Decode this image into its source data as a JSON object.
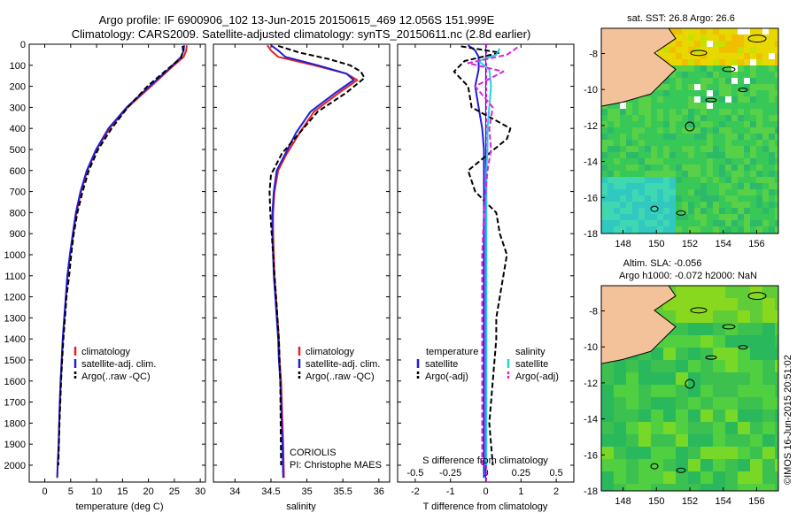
{
  "header": {
    "title_line1": "Argo profile: IF 6900906_102 13-Jun-2015 20150615_469 12.056S 151.999E",
    "title_line2": "Climatology: CARS2009. Satellite-adjusted climatology: synTS_20150611.nc (2.8d earlier)"
  },
  "colors": {
    "climatology": "#e8201e",
    "satellite": "#1f1fd6",
    "argo": "#000000",
    "sal_satellite": "#22d3dc",
    "sal_argo": "#dd22dd",
    "land": "#f3c29a"
  },
  "chart_data": [
    {
      "type": "line",
      "name": "temperature",
      "xlabel": "temperature (deg C)",
      "ylabel": "",
      "xlim": [
        -3,
        31
      ],
      "ylim": [
        2080,
        0
      ],
      "xticks": [
        "0",
        "5",
        "10",
        "15",
        "20",
        "25",
        "30"
      ],
      "yticks": [
        "0",
        "100",
        "200",
        "300",
        "400",
        "500",
        "600",
        "700",
        "800",
        "900",
        "1000",
        "1100",
        "1200",
        "1300",
        "1400",
        "1500",
        "1600",
        "1700",
        "1800",
        "1900",
        "2000"
      ],
      "legend": [
        "climatology",
        "satellite-adj. clim.",
        "Argo(..raw -QC)"
      ],
      "series": [
        {
          "name": "climatology",
          "x": [
            27.4,
            27.3,
            26.8,
            24,
            20.5,
            16,
            12.5,
            10,
            8.2,
            7,
            6.1,
            5.5,
            4.9,
            4.4,
            4.1,
            3.8,
            3.5,
            3.3,
            3.1,
            2.95,
            2.8,
            2.7,
            2.6,
            2.5,
            2.4
          ],
          "y": [
            5,
            30,
            60,
            120,
            200,
            300,
            400,
            500,
            600,
            700,
            800,
            900,
            1000,
            1100,
            1200,
            1300,
            1400,
            1500,
            1600,
            1700,
            1800,
            1900,
            1950,
            2000,
            2060
          ]
        },
        {
          "name": "satellite-adj. clim.",
          "x": [
            26.9,
            26.8,
            26.3,
            23.8,
            20.2,
            15.8,
            12.3,
            9.9,
            8.1,
            6.9,
            6,
            5.4,
            4.85,
            4.35,
            4.05,
            3.75,
            3.45,
            3.25,
            3.05,
            2.9,
            2.78,
            2.68,
            2.58,
            2.48,
            2.4
          ],
          "y": [
            5,
            30,
            60,
            120,
            200,
            300,
            400,
            500,
            600,
            700,
            800,
            900,
            1000,
            1100,
            1200,
            1300,
            1400,
            1500,
            1600,
            1700,
            1800,
            1900,
            1950,
            2000,
            2060
          ]
        },
        {
          "name": "Argo(..raw -QC)",
          "x": [
            26.6,
            26.7,
            26.3,
            23.6,
            19.8,
            16,
            12.9,
            10.3,
            8.5,
            7.3,
            6.3,
            5.6,
            5.1,
            4.7,
            4.2,
            3.9,
            3.6,
            3.35,
            3.15,
            3,
            2.85,
            2.72,
            2.62
          ],
          "y": [
            8,
            30,
            65,
            120,
            200,
            300,
            400,
            500,
            600,
            700,
            800,
            900,
            1000,
            1100,
            1200,
            1300,
            1400,
            1500,
            1600,
            1700,
            1800,
            1900,
            2000
          ]
        }
      ]
    },
    {
      "type": "line",
      "name": "salinity",
      "xlabel": "salinity",
      "ylabel": "",
      "xlim": [
        33.7,
        36.15
      ],
      "ylim": [
        2080,
        0
      ],
      "xticks": [
        "34",
        "34.5",
        "35",
        "35.5",
        "36"
      ],
      "yticks": [],
      "legend": [
        "climatology",
        "satellite-adj. clim.",
        "Argo(..raw -QC)"
      ],
      "annotation": [
        "CORIOLIS",
        "PI: Christophe MAES"
      ],
      "series": [
        {
          "name": "climatology",
          "x": [
            34.45,
            34.5,
            34.6,
            35.1,
            35.55,
            35.7,
            35.45,
            35.1,
            34.9,
            34.72,
            34.6,
            34.55,
            34.53,
            34.53,
            34.54,
            34.55,
            34.57,
            34.59,
            34.61,
            34.62,
            34.64,
            34.65,
            34.66,
            34.67,
            34.68
          ],
          "y": [
            5,
            30,
            60,
            100,
            140,
            170,
            230,
            320,
            420,
            520,
            600,
            700,
            800,
            900,
            1000,
            1100,
            1200,
            1300,
            1400,
            1500,
            1600,
            1700,
            1800,
            1900,
            2060
          ]
        },
        {
          "name": "satellite-adj. clim.",
          "x": [
            34.5,
            34.6,
            34.7,
            35.15,
            35.55,
            35.65,
            35.4,
            35.05,
            34.85,
            34.7,
            34.58,
            34.54,
            34.52,
            34.52,
            34.53,
            34.54,
            34.56,
            34.58,
            34.6,
            34.61,
            34.63,
            34.64,
            34.65,
            34.66,
            34.67
          ],
          "y": [
            5,
            30,
            60,
            100,
            140,
            170,
            230,
            320,
            420,
            520,
            600,
            700,
            800,
            900,
            1000,
            1100,
            1200,
            1300,
            1400,
            1500,
            1600,
            1700,
            1800,
            1900,
            2060
          ]
        },
        {
          "name": "Argo(..raw -QC)",
          "x": [
            34.6,
            34.9,
            35.3,
            35.6,
            35.75,
            35.8,
            35.55,
            35.15,
            34.9,
            34.65,
            34.5,
            34.48,
            34.49,
            34.51,
            34.53,
            34.55,
            34.57,
            34.59,
            34.61,
            34.62,
            34.63,
            34.64
          ],
          "y": [
            8,
            40,
            70,
            100,
            130,
            160,
            230,
            320,
            420,
            520,
            620,
            700,
            800,
            900,
            1000,
            1100,
            1200,
            1300,
            1400,
            1500,
            1600,
            2000
          ]
        }
      ]
    },
    {
      "type": "line",
      "name": "differences",
      "xlabel": "T difference from climatology",
      "xlabel2": "S difference from climatology",
      "xlim": [
        -2.5,
        2.5
      ],
      "ylim": [
        2080,
        0
      ],
      "xticks": [
        "-2",
        "-1",
        "0",
        "1",
        "2"
      ],
      "xticks2": [
        "-0.5",
        "-0.25",
        "0",
        "0.25",
        "0.5"
      ],
      "yticks": [],
      "legend": {
        "temperature_header": "temperature",
        "salinity_header": "salinity",
        "entries": [
          "satellite",
          "Argo(-adj)",
          "satellite",
          "Argo(-adj)"
        ]
      },
      "series": [
        {
          "name": "temperature satellite",
          "x": [
            -0.5,
            -0.3,
            -0.2,
            -0.2,
            -0.3,
            -0.2,
            -0.1,
            -0.05,
            -0.05,
            -0.05,
            -0.05,
            -0.05,
            -0.05,
            -0.05,
            -0.05,
            -0.05,
            -0.05,
            -0.05,
            -0.05,
            -0.05
          ],
          "y": [
            5,
            30,
            60,
            120,
            200,
            300,
            400,
            500,
            600,
            700,
            800,
            900,
            1000,
            1200,
            1400,
            1600,
            1800,
            1900,
            2000,
            2060
          ]
        },
        {
          "name": "temperature Argo(-adj)",
          "x": [
            -0.7,
            0.4,
            -0.6,
            -0.9,
            -0.5,
            -0.4,
            0.7,
            0.6,
            -0.5,
            -0.3,
            0.3,
            0.4,
            0.6,
            0.5,
            0.4,
            0.3,
            0.3,
            0.2,
            0.1,
            0.2
          ],
          "y": [
            10,
            40,
            80,
            130,
            200,
            300,
            400,
            450,
            600,
            700,
            800,
            900,
            1000,
            1100,
            1200,
            1300,
            1400,
            1600,
            1800,
            2000
          ]
        },
        {
          "name": "salinity satellite",
          "x": [
            0.4,
            0.3,
            -0.2,
            0.1,
            0.15,
            0.1,
            0.05,
            0.05,
            0.02,
            0.02,
            0.02,
            0.02,
            0.02,
            0.02,
            0.02,
            0.02
          ],
          "y": [
            20,
            50,
            80,
            120,
            200,
            300,
            400,
            500,
            600,
            700,
            800,
            1000,
            1200,
            1400,
            1700,
            2000
          ]
        },
        {
          "name": "salinity Argo(-adj)",
          "x": [
            0.9,
            0.6,
            -0.5,
            0.5,
            -0.3,
            0.2,
            0.1,
            0.15,
            0.05,
            0,
            -0.05,
            -0.1,
            -0.1,
            -0.1,
            -0.1,
            -0.1
          ],
          "y": [
            15,
            50,
            90,
            130,
            200,
            300,
            400,
            500,
            600,
            700,
            800,
            1000,
            1200,
            1400,
            1700,
            2000
          ]
        }
      ]
    },
    {
      "type": "heatmap",
      "name": "sat SST map",
      "title": "sat. SST: 26.8  Argo: 26.6",
      "xticks": [
        "148",
        "150",
        "152",
        "154",
        "156"
      ],
      "yticks": [
        "-8",
        "-10",
        "-12",
        "-14",
        "-16",
        "-18"
      ],
      "xlim": [
        146.7,
        157.3
      ],
      "ylim": [
        -18,
        -6.6
      ]
    },
    {
      "type": "heatmap",
      "name": "altimetry SLA map",
      "title_line1": "Altim. SLA: -0.056",
      "title_line2": "Argo h1000: -0.072 h2000: NaN",
      "xticks": [
        "148",
        "150",
        "152",
        "154",
        "156"
      ],
      "yticks": [
        "-8",
        "-10",
        "-12",
        "-14",
        "-16",
        "-18"
      ],
      "xlim": [
        146.7,
        157.3
      ],
      "ylim": [
        -18,
        -6.6
      ]
    }
  ],
  "watermark": "©IMOS 16-Jun-2015 20:51:02"
}
